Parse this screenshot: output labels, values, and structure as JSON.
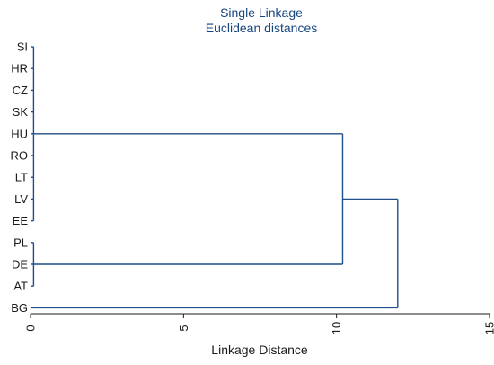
{
  "title": {
    "line1": "Single Linkage",
    "line2": "Euclidean distances"
  },
  "x_axis": {
    "label": "Linkage Distance",
    "range": [
      0,
      15
    ],
    "ticks": [
      "0",
      "5",
      "10",
      "15"
    ],
    "tick_orientation": "rotated 90 degrees"
  },
  "leaves": [
    "SI",
    "HR",
    "CZ",
    "SK",
    "HU",
    "RO",
    "LT",
    "LV",
    "EE",
    "PL",
    "DE",
    "AT",
    "BG"
  ],
  "colors": {
    "title": "#17457e",
    "links": "#1f4e8a",
    "axis": "#1a1a1a",
    "background": "#ffffff"
  },
  "chart_data": {
    "type": "dendrogram",
    "orientation": "horizontal",
    "method": "single linkage",
    "metric": "euclidean",
    "merges": [
      {
        "members": [
          "SI",
          "HR",
          "CZ",
          "SK",
          "HU",
          "RO",
          "LT",
          "LV",
          "EE"
        ],
        "height": 0.1
      },
      {
        "members": [
          "PL",
          "DE",
          "AT"
        ],
        "height": 0.1
      },
      {
        "members": [
          "SI",
          "HR",
          "CZ",
          "SK",
          "HU",
          "RO",
          "LT",
          "LV",
          "EE",
          "PL",
          "DE",
          "AT"
        ],
        "height": 10.2
      },
      {
        "members": [
          "SI",
          "HR",
          "CZ",
          "SK",
          "HU",
          "RO",
          "LT",
          "LV",
          "EE",
          "PL",
          "DE",
          "AT",
          "BG"
        ],
        "height": 12.0
      }
    ]
  }
}
